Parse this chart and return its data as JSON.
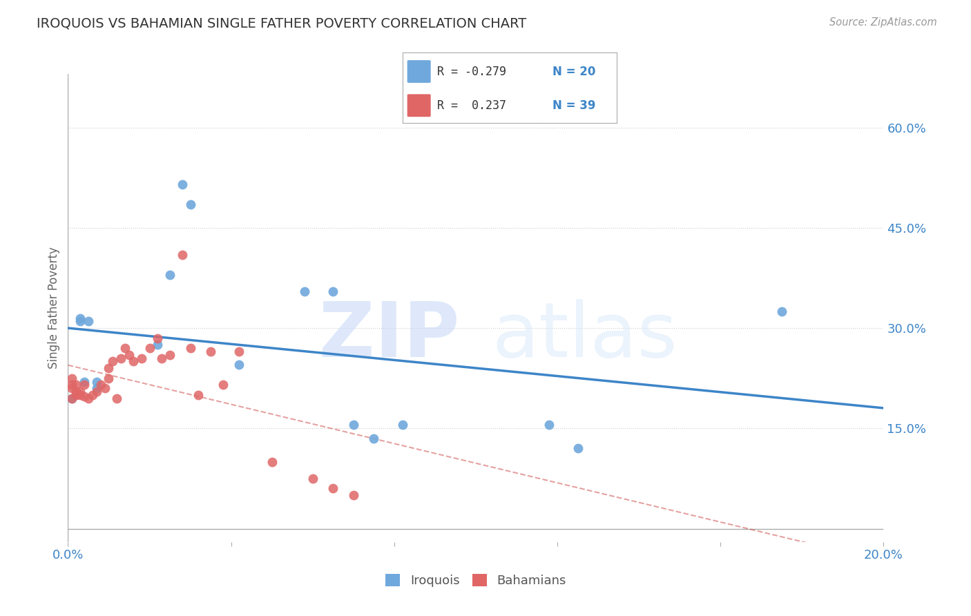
{
  "title": "IROQUOIS VS BAHAMIAN SINGLE FATHER POVERTY CORRELATION CHART",
  "source": "Source: ZipAtlas.com",
  "ylabel": "Single Father Poverty",
  "watermark": "ZIPatlas",
  "xlim": [
    0.0,
    0.2
  ],
  "ylim": [
    -0.02,
    0.68
  ],
  "plot_ylim": [
    0.0,
    0.65
  ],
  "xticks": [
    0.0,
    0.04,
    0.08,
    0.12,
    0.16,
    0.2
  ],
  "xticklabels": [
    "0.0%",
    "",
    "",
    "",
    "",
    "20.0%"
  ],
  "yticks_right": [
    0.15,
    0.3,
    0.45,
    0.6
  ],
  "ytick_right_labels": [
    "15.0%",
    "30.0%",
    "45.0%",
    "60.0%"
  ],
  "iroquois_color": "#6fa8dc",
  "bahamian_color": "#e06666",
  "trend_iroquois_color": "#3d85c8",
  "trend_bahamian_color": "#cc4444",
  "legend_r_iroquois": "R = -0.279",
  "legend_n_iroquois": "N = 20",
  "legend_r_bahamian": "R =  0.237",
  "legend_n_bahamian": "N = 39",
  "iroquois_x": [
    0.001,
    0.003,
    0.003,
    0.004,
    0.005,
    0.007,
    0.007,
    0.022,
    0.025,
    0.028,
    0.03,
    0.042,
    0.058,
    0.065,
    0.07,
    0.075,
    0.082,
    0.118,
    0.125,
    0.175
  ],
  "iroquois_y": [
    0.195,
    0.315,
    0.31,
    0.22,
    0.31,
    0.21,
    0.22,
    0.275,
    0.38,
    0.515,
    0.485,
    0.245,
    0.355,
    0.355,
    0.155,
    0.135,
    0.155,
    0.155,
    0.12,
    0.325
  ],
  "bahamian_x": [
    0.001,
    0.001,
    0.001,
    0.001,
    0.002,
    0.002,
    0.002,
    0.003,
    0.003,
    0.004,
    0.004,
    0.005,
    0.006,
    0.007,
    0.008,
    0.009,
    0.01,
    0.01,
    0.011,
    0.012,
    0.013,
    0.014,
    0.015,
    0.016,
    0.018,
    0.02,
    0.022,
    0.023,
    0.025,
    0.028,
    0.03,
    0.032,
    0.035,
    0.038,
    0.042,
    0.05,
    0.06,
    0.065,
    0.07
  ],
  "bahamian_y": [
    0.195,
    0.21,
    0.215,
    0.225,
    0.2,
    0.205,
    0.215,
    0.2,
    0.205,
    0.198,
    0.215,
    0.195,
    0.2,
    0.205,
    0.215,
    0.21,
    0.225,
    0.24,
    0.25,
    0.195,
    0.255,
    0.27,
    0.26,
    0.25,
    0.255,
    0.27,
    0.285,
    0.255,
    0.26,
    0.41,
    0.27,
    0.2,
    0.265,
    0.215,
    0.265,
    0.1,
    0.075,
    0.06,
    0.05
  ],
  "background_color": "#ffffff",
  "grid_color": "#cccccc",
  "tick_color": "#3d85c8",
  "label_color": "#666666"
}
